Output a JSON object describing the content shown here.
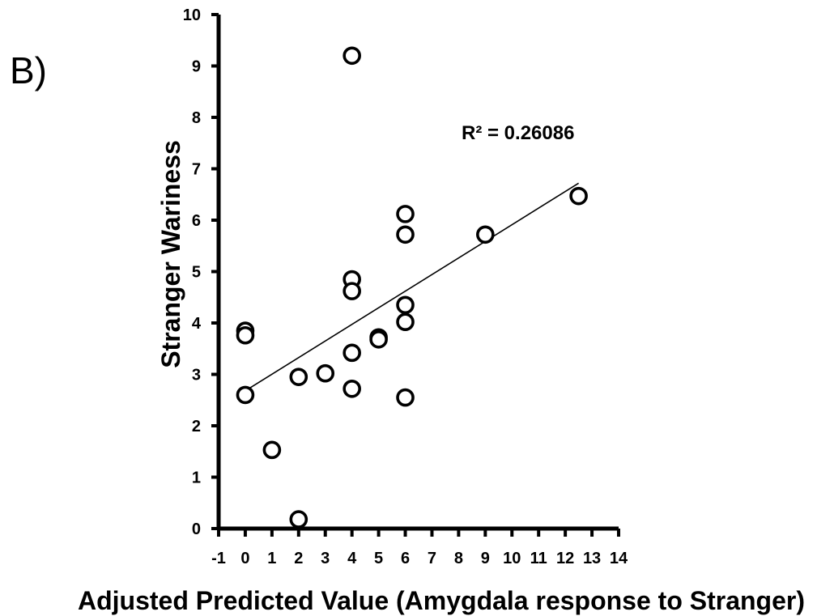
{
  "panel_label": "B)",
  "chart_data": {
    "type": "scatter",
    "title": "",
    "xlabel": "Adjusted Predicted Value (Amygdala response to Stranger)",
    "ylabel": "Stranger Wariness",
    "xlim": [
      -1,
      14
    ],
    "ylim": [
      0,
      10
    ],
    "x_ticks": [
      -1,
      0,
      1,
      2,
      3,
      4,
      5,
      6,
      7,
      8,
      9,
      10,
      11,
      12,
      13,
      14
    ],
    "x_tick_labels": [
      "-1",
      "0",
      "1",
      "2",
      "3",
      "4",
      "5",
      "6",
      "7",
      "8",
      "9",
      "10",
      "11",
      "12",
      "13",
      "14"
    ],
    "y_ticks": [
      0,
      1,
      2,
      3,
      4,
      5,
      6,
      7,
      8,
      9,
      10
    ],
    "y_tick_labels": [
      "0",
      "1",
      "2",
      "3",
      "4",
      "5",
      "6",
      "7",
      "8",
      "9",
      "10"
    ],
    "grid": false,
    "points": [
      {
        "x": 0,
        "y": 3.85
      },
      {
        "x": 0,
        "y": 3.76
      },
      {
        "x": 0,
        "y": 2.6
      },
      {
        "x": 1,
        "y": 1.53
      },
      {
        "x": 2,
        "y": 2.95
      },
      {
        "x": 2,
        "y": 0.18
      },
      {
        "x": 3,
        "y": 3.02
      },
      {
        "x": 4,
        "y": 9.2
      },
      {
        "x": 4,
        "y": 4.85
      },
      {
        "x": 4,
        "y": 4.62
      },
      {
        "x": 4,
        "y": 3.42
      },
      {
        "x": 4,
        "y": 2.72
      },
      {
        "x": 5,
        "y": 3.72
      },
      {
        "x": 5,
        "y": 3.68
      },
      {
        "x": 6,
        "y": 6.12
      },
      {
        "x": 6,
        "y": 5.72
      },
      {
        "x": 6,
        "y": 4.35
      },
      {
        "x": 6,
        "y": 4.02
      },
      {
        "x": 6,
        "y": 2.55
      },
      {
        "x": 9,
        "y": 5.72
      },
      {
        "x": 12.5,
        "y": 6.47
      }
    ],
    "trendline": {
      "x": [
        0,
        12.5
      ],
      "y": [
        2.68,
        6.72
      ]
    },
    "annotation": "R² = 0.26086"
  }
}
